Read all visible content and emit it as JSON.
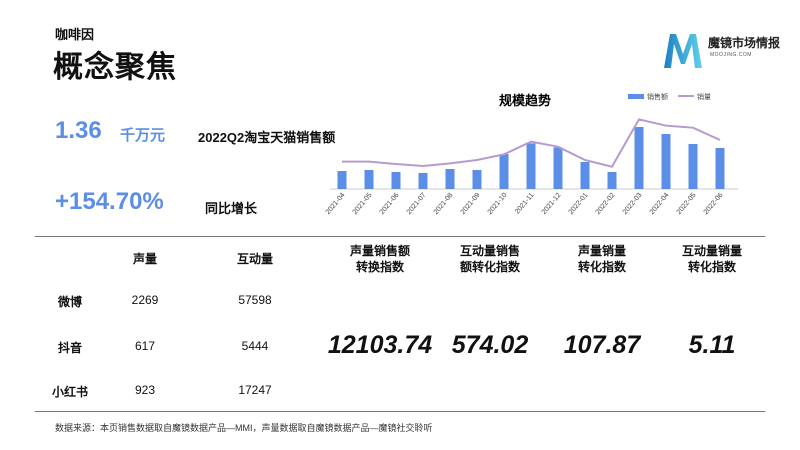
{
  "brand": "咖啡因",
  "title": "概念聚焦",
  "logo": {
    "name": "魔镜市场情报",
    "sub": "MOOJING.COM"
  },
  "kpi": {
    "value": "1.36",
    "unit": "千万元",
    "label": "2022Q2淘宝天猫销售额",
    "growth": "+154.70%",
    "growth_label": "同比增长"
  },
  "chart_data": {
    "type": "bar+line",
    "title": "规模趋势",
    "categories": [
      "2021-04",
      "2021-05",
      "2021-06",
      "2021-07",
      "2021-08",
      "2021-09",
      "2021-10",
      "2021-11",
      "2021-12",
      "2022-01",
      "2022-02",
      "2022-03",
      "2022-04",
      "2022-05",
      "2022-06"
    ],
    "series": [
      {
        "name": "销售额",
        "type": "bar",
        "color": "#5b8ee6",
        "values": [
          54,
          57,
          51,
          48,
          60,
          57,
          105,
          137,
          125,
          81,
          51,
          186,
          165,
          135,
          123
        ]
      },
      {
        "name": "销量",
        "type": "line",
        "color": "#b59bd0",
        "values": [
          82,
          82,
          75,
          69,
          77,
          87,
          104,
          142,
          127,
          87,
          67,
          209,
          190,
          184,
          147
        ]
      }
    ],
    "legend": "top-right",
    "grid": false,
    "y_axis_shown": false
  },
  "table": {
    "headers": [
      "声量",
      "互动量"
    ],
    "rows": [
      {
        "platform": "微博",
        "voice": "2269",
        "interact": "57598"
      },
      {
        "platform": "抖音",
        "voice": "617",
        "interact": "5444"
      },
      {
        "platform": "小红书",
        "voice": "923",
        "interact": "17247"
      }
    ],
    "metrics": [
      {
        "l1": "声量销售额",
        "l2": "转换指数",
        "value": "12103.74"
      },
      {
        "l1": "互动量销售",
        "l2": "额转化指数",
        "value": "574.02"
      },
      {
        "l1": "声量销量",
        "l2": "转化指数",
        "value": "107.87"
      },
      {
        "l1": "互动量销量",
        "l2": "转化指数",
        "value": "5.11"
      }
    ]
  },
  "footnote": "数据来源：本页销售数据取自魔镜数据产品—MMI，声量数据取自魔镜数据产品—魔镜社交聆听"
}
